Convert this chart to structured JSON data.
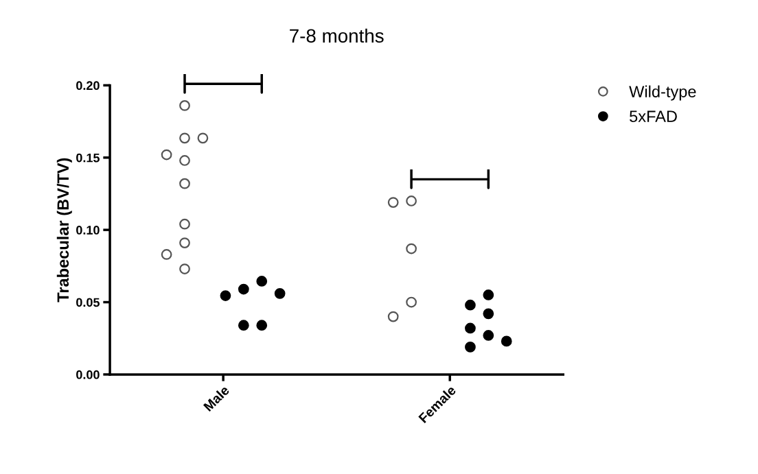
{
  "chart_data": {
    "type": "scatter",
    "title": "7-8 months",
    "ylabel": "Trabecular (BV/TV)",
    "categories": [
      "Male",
      "Female"
    ],
    "ylim": [
      0,
      0.2
    ],
    "yticks": [
      {
        "value": 0,
        "label": "0.00"
      },
      0.05,
      {
        "value": 0.1,
        "label": "0.10"
      },
      0.15,
      {
        "value": 0.2,
        "label": "0.20"
      }
    ],
    "grid": false,
    "legend": "right",
    "marker": "circle",
    "series": [
      {
        "name": "Wild-type",
        "color": "#555555",
        "x": [
          "Male",
          "Male",
          "Male",
          "Male",
          "Male",
          "Male",
          "Male",
          "Male",
          "Male",
          "Male",
          "Female",
          "Female",
          "Female",
          "Female",
          "Female"
        ],
        "values": [
          0.186,
          0.1635,
          0.1635,
          0.148,
          0.152,
          0.132,
          0.104,
          0.091,
          0.083,
          0.073,
          0.119,
          0.12,
          0.087,
          0.05,
          0.04
        ]
      },
      {
        "name": "5xFAD",
        "color": "#000000",
        "x": [
          "Male",
          "Male",
          "Male",
          "Male",
          "Male",
          "Male",
          "Female",
          "Female",
          "Female",
          "Female",
          "Female",
          "Female",
          "Female"
        ],
        "values": [
          0.0645,
          0.056,
          0.0545,
          0.059,
          0.034,
          0.034,
          0.042,
          0.048,
          0.055,
          0.027,
          0.032,
          0.019,
          0.023
        ]
      }
    ]
  }
}
